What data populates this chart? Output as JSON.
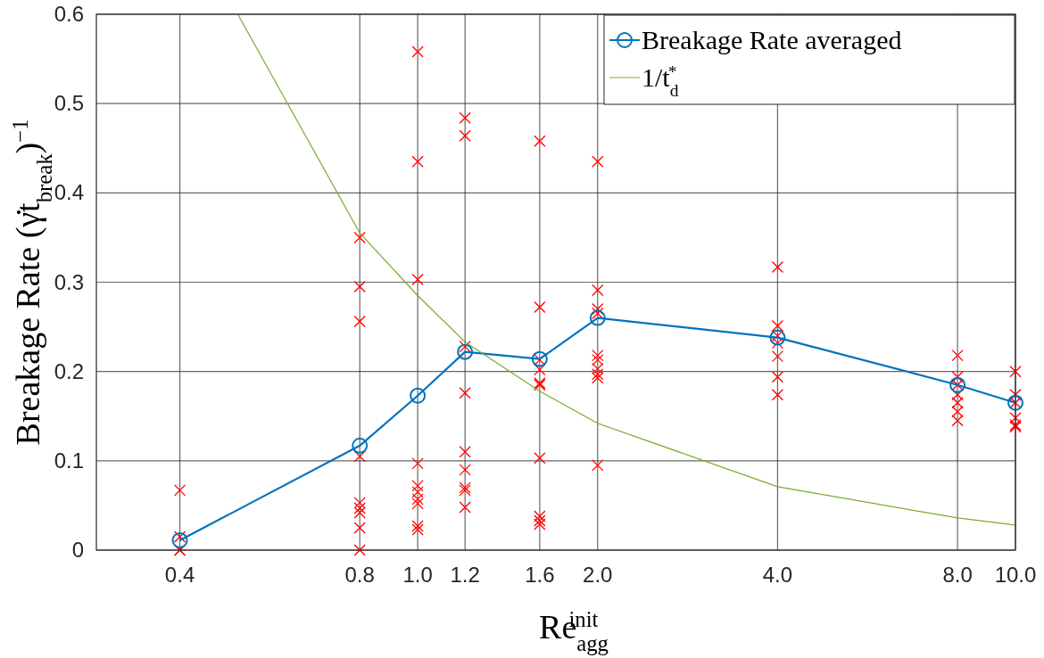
{
  "chart_data": {
    "type": "line",
    "xlabel": "Re$_{agg}$$^{init}$",
    "ylabel": "Breakage Rate (γ̇t$_{break}$)$^{−1}$",
    "log": "x",
    "grid": true,
    "legend": "top right",
    "xlim": [
      0.29,
      10
    ],
    "xticks": [
      0.4,
      0.8,
      {
        "value": 1,
        "label": "1.0"
      },
      1.2,
      1.6,
      {
        "value": 2,
        "label": "2.0"
      },
      {
        "value": 4,
        "label": "4.0"
      },
      {
        "value": 8,
        "label": "8.0"
      },
      {
        "value": 10,
        "label": "10.0"
      }
    ],
    "ylim": [
      0,
      0.6
    ],
    "yticks": [
      0,
      0.1,
      0.2,
      0.3,
      0.4,
      0.5,
      0.6
    ],
    "series": [
      {
        "type": "scatter",
        "color": "#ff0000",
        "marker": "cross",
        "x": [
          0.4,
          0.4,
          0.4,
          0.4,
          0.8,
          0.8,
          0.8,
          0.8,
          0.8,
          0.8,
          0.8,
          0.8,
          0.8,
          1,
          1,
          1,
          1,
          1,
          1,
          1,
          1,
          1,
          1,
          1.2,
          1.2,
          1.2,
          1.2,
          1.2,
          1.2,
          1.2,
          1.2,
          1.2,
          1.6,
          1.6,
          1.6,
          1.6,
          1.6,
          1.6,
          1.6,
          1.6,
          1.6,
          1.6,
          2,
          2,
          2,
          2,
          2,
          2,
          2,
          2,
          2,
          2,
          4,
          4,
          4,
          4,
          4,
          4,
          4,
          8,
          8,
          8,
          8,
          8,
          8,
          8,
          10,
          10,
          10,
          10,
          10,
          10
        ],
        "values": [
          0.067,
          0.015,
          0,
          0,
          0.35,
          0.295,
          0.256,
          0.105,
          0.053,
          0.047,
          0.042,
          0.025,
          0,
          0.558,
          0.435,
          0.303,
          0.097,
          0.072,
          0.065,
          0.057,
          0.052,
          0.027,
          0.023,
          0.484,
          0.464,
          0.228,
          0.176,
          0.11,
          0.09,
          0.07,
          0.067,
          0.048,
          0.458,
          0.272,
          0.213,
          0.202,
          0.187,
          0.185,
          0.103,
          0.038,
          0.033,
          0.029,
          0.435,
          0.291,
          0.27,
          0.265,
          0.218,
          0.213,
          0.203,
          0.197,
          0.193,
          0.095,
          0.317,
          0.251,
          0.24,
          0.232,
          0.217,
          0.194,
          0.174,
          0.218,
          0.194,
          0.185,
          0.174,
          0.165,
          0.155,
          0.145,
          0.2,
          0.174,
          0.165,
          0.148,
          0.14,
          0.138
        ]
      },
      {
        "name": "Breakage Rate averaged",
        "color": "#0072bd",
        "marker": "circle",
        "x": [
          0.4,
          0.8,
          1,
          1.2,
          1.6,
          2,
          4,
          8,
          10
        ],
        "values": [
          0.011,
          0.117,
          0.173,
          0.222,
          0.214,
          0.26,
          0.238,
          0.185,
          0.165
        ]
      },
      {
        "name": "1/t$_{d}$$^{*}$",
        "color": "#77ac30",
        "marker": "none",
        "x": [
          0.5,
          0.8,
          1,
          1.2,
          1.6,
          2,
          4,
          8,
          10
        ],
        "values": [
          0.6,
          0.355,
          0.285,
          0.233,
          0.178,
          0.142,
          0.071,
          0.036,
          0.028
        ]
      }
    ]
  }
}
